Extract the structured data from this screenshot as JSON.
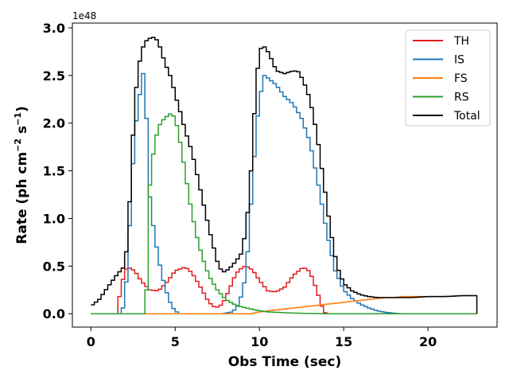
{
  "chart_data": {
    "type": "line",
    "drawstyle": "steps",
    "xlabel": "Obs Time (sec)",
    "ylabel": "Rate (ph cm^-2 s^-1)",
    "ylabel_parts": {
      "main": "Rate (ph cm",
      "exp1": "−2",
      "mid": " s",
      "exp2": "−1",
      "end": ")"
    },
    "y_offset_label": "1e48",
    "y_scale": 1e+48,
    "xlim": [
      -1.1,
      24.1
    ],
    "ylim": [
      -0.14,
      3.05
    ],
    "x_ticks": [
      0,
      5,
      10,
      15,
      20
    ],
    "x_tick_labels": [
      "0",
      "5",
      "10",
      "15",
      "20"
    ],
    "y_ticks": [
      0.0,
      0.5,
      1.0,
      1.5,
      2.0,
      2.5,
      3.0
    ],
    "y_tick_labels": [
      "0.0",
      "0.5",
      "1.0",
      "1.5",
      "2.0",
      "2.5",
      "3.0"
    ],
    "grid": false,
    "legend_position": "top-right",
    "series": [
      {
        "name": "TH",
        "color": "#e41a1c",
        "x": [
          0.0,
          0.5,
          1.0,
          1.5,
          2.0,
          2.2,
          2.6,
          3.0,
          3.5,
          4.0,
          4.5,
          5.0,
          5.6,
          6.0,
          6.5,
          7.0,
          7.4,
          7.8,
          8.2,
          8.6,
          9.0,
          9.2,
          9.6,
          10.0,
          10.5,
          11.0,
          11.5,
          12.0,
          12.6,
          13.0,
          13.4,
          13.7,
          13.8,
          14.0,
          16.0,
          18.0,
          20.0,
          22.9
        ],
        "values": [
          0.0,
          0.0,
          0.0,
          0.0,
          0.45,
          0.49,
          0.45,
          0.34,
          0.25,
          0.24,
          0.33,
          0.45,
          0.49,
          0.43,
          0.28,
          0.12,
          0.06,
          0.1,
          0.25,
          0.42,
          0.49,
          0.5,
          0.46,
          0.35,
          0.24,
          0.23,
          0.28,
          0.4,
          0.49,
          0.44,
          0.25,
          0.08,
          0.02,
          0.0,
          0.0,
          0.0,
          0.0,
          0.0
        ]
      },
      {
        "name": "IS",
        "color": "#1f77b4",
        "x": [
          0.0,
          1.8,
          2.0,
          2.2,
          2.4,
          2.6,
          2.8,
          3.0,
          3.1,
          3.2,
          3.3,
          3.4,
          3.6,
          3.8,
          4.0,
          4.2,
          4.4,
          4.6,
          4.8,
          5.0,
          5.3,
          7.8,
          8.4,
          8.8,
          9.2,
          9.4,
          9.6,
          9.8,
          10.0,
          10.3,
          10.6,
          11.0,
          11.5,
          12.0,
          12.5,
          13.0,
          13.5,
          14.0,
          14.5,
          15.0,
          15.5,
          16.0,
          16.5,
          17.0,
          17.5,
          18.0,
          18.4
        ],
        "values": [
          0.0,
          0.0,
          0.12,
          0.55,
          1.3,
          1.85,
          2.2,
          2.4,
          2.52,
          2.5,
          2.05,
          1.4,
          1.05,
          0.8,
          0.6,
          0.42,
          0.28,
          0.16,
          0.08,
          0.03,
          0.0,
          0.0,
          0.02,
          0.1,
          0.4,
          0.9,
          1.4,
          1.9,
          2.25,
          2.5,
          2.46,
          2.4,
          2.28,
          2.2,
          2.05,
          1.8,
          1.35,
          0.85,
          0.45,
          0.25,
          0.16,
          0.1,
          0.06,
          0.03,
          0.015,
          0.005,
          0.0
        ]
      },
      {
        "name": "FS",
        "color": "#ff7f0e",
        "x": [
          0.0,
          9.5,
          10.0,
          10.5,
          11.0,
          11.5,
          12.0,
          12.5,
          13.0,
          13.5,
          14.0,
          14.5,
          15.0,
          15.5,
          16.0,
          16.5,
          17.0,
          17.5,
          18.0,
          18.5,
          19.0,
          20.0,
          21.0,
          22.0,
          22.9
        ],
        "values": [
          0.0,
          0.0,
          0.02,
          0.03,
          0.04,
          0.05,
          0.06,
          0.07,
          0.08,
          0.09,
          0.1,
          0.11,
          0.12,
          0.13,
          0.14,
          0.15,
          0.16,
          0.17,
          0.17,
          0.18,
          0.18,
          0.18,
          0.18,
          0.19,
          0.19
        ]
      },
      {
        "name": "RS",
        "color": "#2ca02c",
        "x": [
          0.0,
          3.2,
          3.3,
          3.4,
          3.6,
          3.8,
          4.0,
          4.2,
          4.4,
          4.6,
          4.8,
          5.0,
          5.2,
          5.4,
          5.6,
          5.8,
          6.0,
          6.3,
          6.6,
          7.0,
          7.5,
          8.0,
          8.5,
          9.0,
          9.5,
          10.0,
          10.5,
          11.0,
          11.5,
          12.0,
          12.5,
          13.0,
          14.0,
          15.0,
          17.0,
          19.0,
          21.0,
          22.9
        ],
        "values": [
          0.0,
          0.0,
          0.25,
          1.15,
          1.55,
          1.8,
          1.95,
          2.02,
          2.05,
          2.09,
          2.1,
          2.05,
          1.9,
          1.7,
          1.48,
          1.25,
          1.05,
          0.8,
          0.6,
          0.4,
          0.25,
          0.15,
          0.1,
          0.07,
          0.05,
          0.03,
          0.02,
          0.015,
          0.01,
          0.008,
          0.005,
          0.003,
          0.0,
          0.0,
          0.0,
          0.0,
          0.0,
          0.0
        ]
      },
      {
        "name": "Total",
        "color": "#000000",
        "x": [
          0.0,
          0.5,
          1.0,
          1.5,
          2.0,
          2.2,
          2.4,
          2.6,
          2.8,
          3.0,
          3.2,
          3.4,
          3.6,
          3.8,
          4.0,
          4.2,
          4.4,
          4.6,
          4.8,
          5.0,
          5.3,
          5.6,
          6.0,
          6.5,
          7.0,
          7.5,
          7.8,
          8.2,
          8.6,
          9.0,
          9.4,
          9.6,
          9.8,
          10.0,
          10.2,
          10.4,
          10.6,
          11.0,
          11.5,
          12.0,
          12.3,
          12.6,
          13.0,
          13.4,
          13.8,
          14.2,
          14.6,
          15.0,
          15.5,
          16.0,
          16.5,
          17.0,
          18.0,
          19.0,
          20.0,
          21.0,
          22.0,
          22.9
        ],
        "values": [
          0.08,
          0.15,
          0.28,
          0.4,
          0.5,
          0.8,
          1.55,
          2.2,
          2.55,
          2.75,
          2.85,
          2.88,
          2.9,
          2.9,
          2.85,
          2.75,
          2.62,
          2.55,
          2.45,
          2.3,
          2.12,
          1.92,
          1.7,
          1.3,
          0.9,
          0.55,
          0.43,
          0.47,
          0.55,
          0.65,
          1.2,
          1.8,
          2.4,
          2.75,
          2.82,
          2.78,
          2.72,
          2.55,
          2.52,
          2.55,
          2.54,
          2.45,
          2.25,
          1.9,
          1.4,
          0.9,
          0.5,
          0.32,
          0.24,
          0.2,
          0.18,
          0.17,
          0.17,
          0.17,
          0.18,
          0.18,
          0.19,
          0.19
        ]
      }
    ]
  }
}
